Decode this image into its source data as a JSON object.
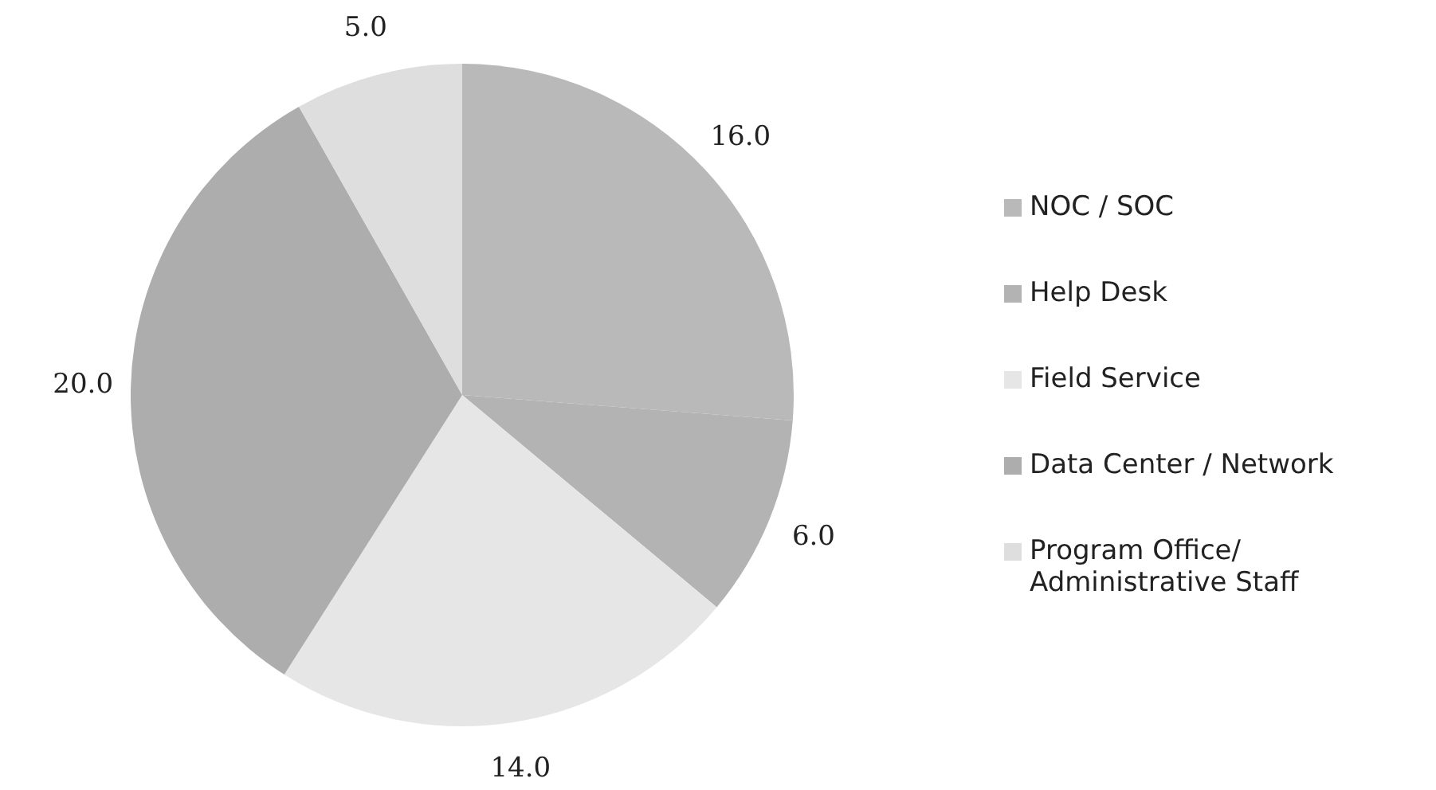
{
  "chart_data": {
    "type": "pie",
    "categories": [
      "NOC / SOC",
      "Help Desk",
      "Field Service",
      "Data Center / Network",
      "Program Office/ Administrative Staff"
    ],
    "values": [
      16,
      6,
      14,
      20,
      5
    ],
    "value_labels": [
      "16.0",
      "6.0",
      "14.0",
      "20.0",
      "5.0"
    ],
    "colors": [
      "#b9b9b9",
      "#b3b3b3",
      "#e6e6e6",
      "#adadad",
      "#dedede"
    ],
    "legend": "right"
  }
}
